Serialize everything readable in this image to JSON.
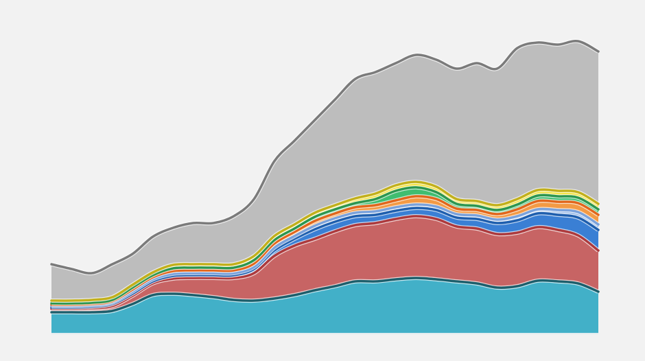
{
  "chart_data": {
    "type": "stacked_area",
    "ylim": [
      0,
      450
    ],
    "series": [
      {
        "color": "#42b0c8",
        "line_color": "#1d5f6c",
        "values": [
          30,
          30,
          30,
          32,
          42,
          55,
          57,
          55,
          52,
          48,
          47,
          50,
          55,
          62,
          68,
          75,
          75,
          78,
          80,
          78,
          75,
          72,
          66,
          68,
          76,
          75,
          72,
          60
        ]
      },
      {
        "color": "#c76464",
        "line_color": "#ad3a3d",
        "values": [
          5,
          5,
          6,
          7,
          12,
          17,
          22,
          25,
          28,
          32,
          40,
          62,
          72,
          75,
          80,
          82,
          85,
          88,
          90,
          88,
          80,
          80,
          78,
          78,
          78,
          75,
          70,
          60
        ]
      },
      {
        "color": "#3a7fd4",
        "line_color": "#1f5fae",
        "values": [
          2,
          2,
          2,
          3,
          3,
          3,
          4,
          4,
          4,
          4,
          6,
          8,
          10,
          14,
          14,
          13,
          12,
          12,
          12,
          13,
          13,
          14,
          16,
          18,
          20,
          22,
          26,
          30
        ]
      },
      {
        "color": "#9dbde8",
        "line_color": "#7aa2dc",
        "values": [
          2,
          2,
          2,
          2,
          3,
          3,
          3,
          3,
          3,
          3,
          3,
          4,
          4,
          5,
          5,
          5,
          5,
          5,
          5,
          5,
          5,
          5,
          5,
          6,
          6,
          7,
          8,
          8
        ]
      },
      {
        "color": "#f39a45",
        "line_color": "#e2661c",
        "values": [
          2,
          2,
          2,
          2,
          3,
          3,
          4,
          4,
          4,
          4,
          5,
          6,
          6,
          7,
          7,
          8,
          9,
          10,
          12,
          11,
          8,
          8,
          8,
          10,
          12,
          12,
          13,
          14
        ]
      },
      {
        "color": "#40bd70",
        "line_color": "#2c9650",
        "values": [
          2,
          2,
          2,
          2,
          3,
          3,
          4,
          4,
          4,
          4,
          5,
          5,
          5,
          6,
          6,
          6,
          9,
          14,
          13,
          10,
          7,
          6,
          6,
          7,
          8,
          8,
          8,
          8
        ]
      },
      {
        "color": "#f2e244",
        "line_color": "#c2b01c",
        "values": [
          4,
          4,
          4,
          4,
          4,
          4,
          5,
          5,
          5,
          5,
          6,
          6,
          6,
          6,
          6,
          7,
          8,
          8,
          8,
          8,
          7,
          7,
          7,
          8,
          8,
          8,
          8,
          8
        ]
      },
      {
        "color": "#bdbdbd",
        "line_color": "#7b7b7b",
        "values": [
          53,
          46,
          39,
          48,
          45,
          52,
          54,
          60,
          60,
          70,
          83,
          109,
          122,
          135,
          154,
          174,
          177,
          178,
          185,
          185,
          190,
          201,
          199,
          220,
          215,
          213,
          220,
          222
        ]
      }
    ]
  }
}
